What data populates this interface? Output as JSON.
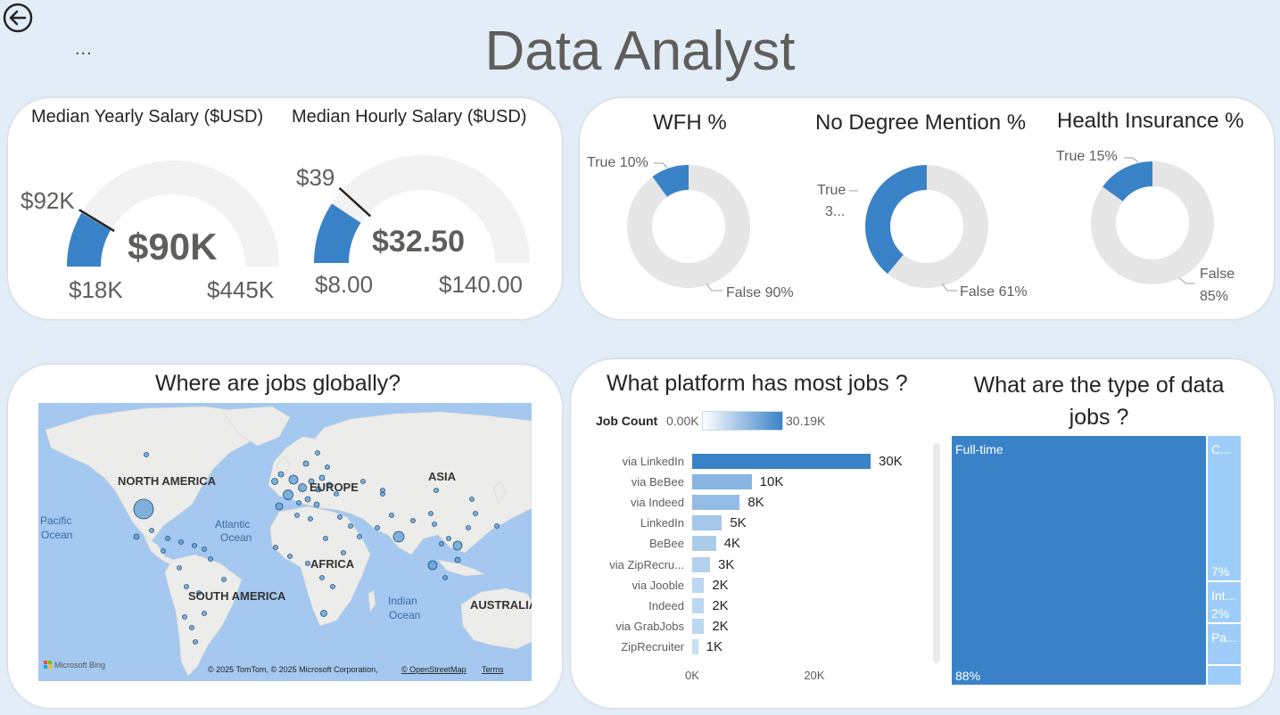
{
  "page": {
    "title": "Data Analyst",
    "more_menu": "...",
    "back_icon": "back-arrow-icon"
  },
  "gauges": [
    {
      "title": "Median Yearly Salary ($USD)",
      "value_label": "$90K",
      "min_label": "$18K",
      "max_label": "$445K",
      "target_label": "$92K",
      "value": 90,
      "min": 18,
      "max": 445,
      "target": 92
    },
    {
      "title": "Median Hourly Salary ($USD)",
      "value_label": "$32.50",
      "min_label": "$8.00",
      "max_label": "$140.00",
      "target_label": "$39",
      "value": 32.5,
      "min": 8,
      "max": 140,
      "target": 39
    }
  ],
  "donuts": [
    {
      "title": "WFH %",
      "true_pct": 10,
      "true_label": "True 10%",
      "false_label": "False 90%"
    },
    {
      "title": "No Degree Mention %",
      "true_pct": 39,
      "true_label_1": "True",
      "true_label_2": "3...",
      "false_label": "False 61%"
    },
    {
      "title": "Health Insurance %",
      "true_pct": 15,
      "true_label": "True 15%",
      "false_label_1": "False",
      "false_label_2": "85%"
    }
  ],
  "map": {
    "title": "Where are jobs globally?",
    "labels": {
      "north_america": "NORTH AMERICA",
      "europe": "EUROPE",
      "asia": "ASIA",
      "africa": "AFRICA",
      "south_america": "SOUTH AMERICA",
      "australia": "AUSTRALIA",
      "pacific_1": "Pacific",
      "pacific_2": "Ocean",
      "atlantic_1": "Atlantic",
      "atlantic_2": "Ocean",
      "indian_1": "Indian",
      "indian_2": "Ocean"
    },
    "bing_logo": "Microsoft Bing",
    "attribution": "© 2025 TomTom, © 2025 Microsoft Corporation,",
    "osm_link": "© OpenStreetMap",
    "terms_link": "Terms"
  },
  "chart_data": [
    {
      "type": "bar",
      "orientation": "horizontal",
      "title": "What platform has most jobs ?",
      "legend": {
        "title": "Job Count",
        "min_label": "0.00K",
        "max_label": "30.19K"
      },
      "categories": [
        "via LinkedIn",
        "via BeBee",
        "via Indeed",
        "LinkedIn",
        "BeBee",
        "via ZipRecru...",
        "via Jooble",
        "Indeed",
        "via GrabJobs",
        "ZipRecruiter"
      ],
      "values": [
        30000,
        10000,
        8000,
        5000,
        4000,
        3000,
        2000,
        2000,
        2000,
        1000
      ],
      "value_labels": [
        "30K",
        "10K",
        "8K",
        "5K",
        "4K",
        "3K",
        "2K",
        "2K",
        "2K",
        "1K"
      ],
      "x_ticks": [
        0,
        20000
      ],
      "x_tick_labels": [
        "0K",
        "20K"
      ],
      "xlim": [
        0,
        30190
      ]
    },
    {
      "type": "treemap",
      "title": "What are the type of data jobs ?",
      "items": [
        {
          "name": "Full-time",
          "pct_label": "88%",
          "value": 88
        },
        {
          "name": "C...",
          "pct_label": "7%",
          "value": 7
        },
        {
          "name": "Int...",
          "pct_label": "2%",
          "value": 2
        },
        {
          "name": "Pa...",
          "pct_label": "",
          "value": 2
        },
        {
          "name": "",
          "pct_label": "",
          "value": 1
        }
      ]
    }
  ],
  "colors": {
    "accent": "#3a82c8",
    "track": "#e6e6e6",
    "gauge_track": "#f2f2f2",
    "light_blue": "#9dcdf8",
    "ocean": "#a4c8f0",
    "land": "#ececea"
  }
}
